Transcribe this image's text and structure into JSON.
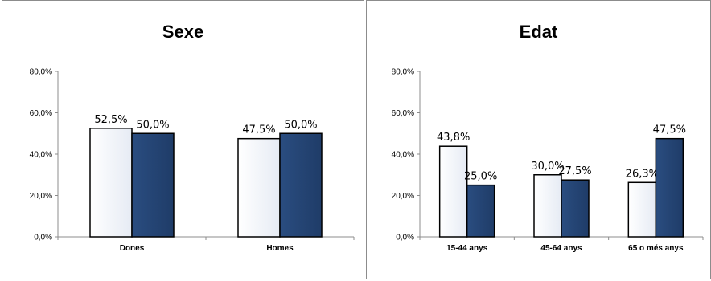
{
  "colors": {
    "series1_fill": "#e6ebf4",
    "series2_fill": "#1f3c68",
    "bar_outline": "#000000",
    "panel_border": "#8c8c8c"
  },
  "chart_data": [
    {
      "type": "bar",
      "title": "Sexe",
      "categories": [
        "Dones",
        "Homes"
      ],
      "series": [
        {
          "values": [
            52.5,
            47.5
          ],
          "labels": [
            "52,5%",
            "47,5%"
          ]
        },
        {
          "values": [
            50.0,
            50.0
          ],
          "labels": [
            "50,0%",
            "50,0%"
          ]
        }
      ],
      "ylim": [
        0,
        80
      ],
      "yticks": [
        "0,0%",
        "20,0%",
        "40,0%",
        "60,0%",
        "80,0%"
      ],
      "grid": false,
      "legend": "none"
    },
    {
      "type": "bar",
      "title": "Edat",
      "categories": [
        "15-44 anys",
        "45-64 anys",
        "65 o més anys"
      ],
      "series": [
        {
          "values": [
            43.8,
            30.0,
            26.3
          ],
          "labels": [
            "43,8%",
            "30,0%",
            "26,3%"
          ]
        },
        {
          "values": [
            25.0,
            27.5,
            47.5
          ],
          "labels": [
            "25,0%",
            "27,5%",
            "47,5%"
          ]
        }
      ],
      "ylim": [
        0,
        80
      ],
      "yticks": [
        "0,0%",
        "20,0%",
        "40,0%",
        "60,0%",
        "80,0%"
      ],
      "grid": false,
      "legend": "none"
    }
  ]
}
